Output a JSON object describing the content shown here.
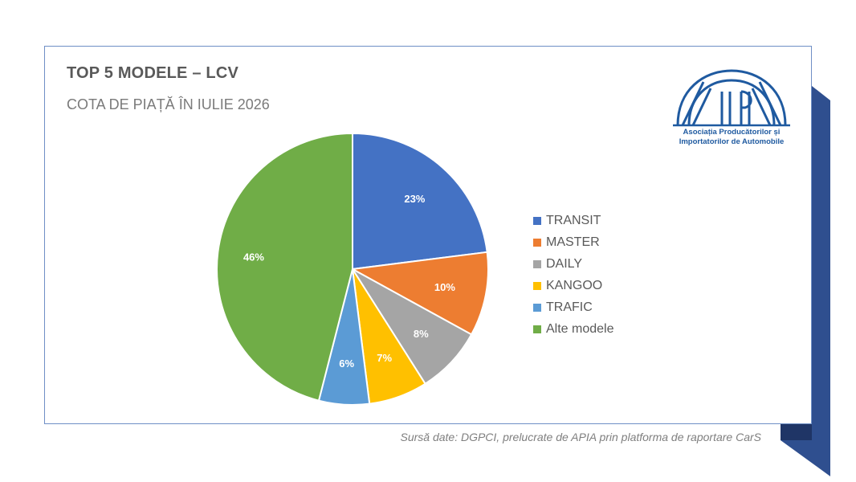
{
  "title": "TOP 5 MODELE – LCV",
  "subtitle": "COTA DE PIAȚĂ ÎN IULIE 2026",
  "logo": {
    "wordmark": "APIA",
    "line1": "Asociația Producătorilor și",
    "line2": "Importatorilor de Automobile",
    "color": "#1f5aa0"
  },
  "source": "Sursă date: DGPCI, prelucrate de APIA prin platforma de raportare CarS",
  "colors": {
    "ribbon": "#2f4f8f",
    "ribbon_dark": "#1f3566",
    "card_border": "#6f8fc6"
  },
  "chart_data": {
    "type": "pie",
    "title": "TOP 5 MODELE – LCV",
    "subtitle": "COTA DE PIAȚĂ ÎN IULIE 2026",
    "legend_position": "right",
    "slices": [
      {
        "label": "TRANSIT",
        "value": 23,
        "display": "23%",
        "color": "#4472c4"
      },
      {
        "label": "MASTER",
        "value": 10,
        "display": "10%",
        "color": "#ed7d31"
      },
      {
        "label": "DAILY",
        "value": 8,
        "display": "8%",
        "color": "#a5a5a5"
      },
      {
        "label": "KANGOO",
        "value": 7,
        "display": "7%",
        "color": "#ffc000"
      },
      {
        "label": "TRAFIC",
        "value": 6,
        "display": "6%",
        "color": "#5b9bd5"
      },
      {
        "label": "Alte modele",
        "value": 46,
        "display": "46%",
        "color": "#70ad47"
      }
    ]
  }
}
